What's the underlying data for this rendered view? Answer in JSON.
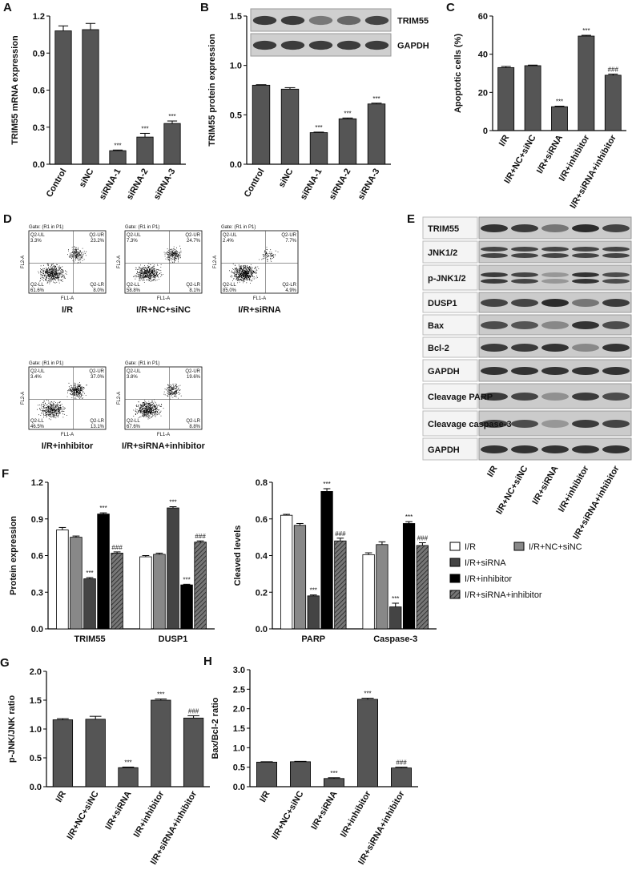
{
  "chart_data": [
    {
      "type": "bar",
      "panel": "A",
      "y_label": "TRIM55 mRNA expression",
      "categories": [
        "Control",
        "siNC",
        "siRNA-1",
        "siRNA-2",
        "siRNA-3"
      ],
      "values": [
        1.08,
        1.09,
        0.11,
        0.22,
        0.33
      ],
      "errors": [
        0.04,
        0.05,
        0.005,
        0.03,
        0.02
      ],
      "annotations": [
        null,
        null,
        "***",
        "***",
        "***"
      ],
      "color": "#555555",
      "ylim": [
        0,
        1.2
      ],
      "yticks": [
        {
          "value": 0,
          "label": "0.0"
        },
        0.3,
        0.6,
        0.9,
        1.2
      ]
    },
    {
      "type": "bar",
      "panel": "B",
      "y_label": "TRIM55 protein expression",
      "categories": [
        "Control",
        "siNC",
        "siRNA-1",
        "siRNA-2",
        "siRNA-3"
      ],
      "values": [
        0.8,
        0.76,
        0.32,
        0.46,
        0.61
      ],
      "errors": [
        0.005,
        0.015,
        0.005,
        0.008,
        0.008
      ],
      "annotations": [
        null,
        null,
        "***",
        "***",
        "***"
      ],
      "color": "#555555",
      "ylim": [
        0,
        1.5
      ],
      "yticks": [
        {
          "value": 0,
          "label": "0.0"
        },
        0.5,
        {
          "value": 1,
          "label": "1.0"
        },
        1.5
      ],
      "blot_labels": [
        "TRIM55",
        "GAPDH"
      ]
    },
    {
      "type": "bar",
      "panel": "C",
      "y_label": "Apoptotic cells (%)",
      "categories": [
        "I/R",
        "I/R+NC+siNC",
        "I/R+siRNA",
        "I/R+inhibitor",
        "I/R+siRNA+inhibitor"
      ],
      "values": [
        33,
        34,
        12.5,
        49.5,
        29
      ],
      "errors": [
        0.6,
        0.3,
        0.3,
        0.4,
        0.6
      ],
      "annotations": [
        null,
        null,
        "***",
        "***",
        "###"
      ],
      "color": "#555555",
      "ylim": [
        0,
        60
      ],
      "yticks": [
        0,
        20,
        40,
        60
      ]
    },
    {
      "type": "bar",
      "panel": "F",
      "y_label": "Protein expression",
      "categories": [
        "TRIM55",
        "DUSP1"
      ],
      "series": [
        {
          "name": "I/R",
          "color": "#ffffff",
          "values": [
            0.81,
            0.59
          ],
          "errors": [
            0.02,
            0.01
          ],
          "annotations": [
            null,
            null
          ]
        },
        {
          "name": "I/R+NC+siNC",
          "color": "#888888",
          "values": [
            0.75,
            0.61
          ],
          "errors": [
            0.01,
            0.01
          ],
          "annotations": [
            null,
            null
          ]
        },
        {
          "name": "I/R+siRNA",
          "color": "#444444",
          "values": [
            0.41,
            0.99
          ],
          "errors": [
            0.01,
            0.01
          ],
          "annotations": [
            "***",
            "***"
          ]
        },
        {
          "name": "I/R+inhibitor",
          "color": "#000000",
          "values": [
            0.94,
            0.36
          ],
          "errors": [
            0.01,
            0.005
          ],
          "annotations": [
            "***",
            "***"
          ]
        },
        {
          "name": "I/R+siRNA+inhibitor",
          "color": "#666666",
          "hatch": true,
          "values": [
            0.62,
            0.71
          ],
          "errors": [
            0.01,
            0.01
          ],
          "annotations": [
            "###",
            "###"
          ]
        }
      ],
      "ylim": [
        0,
        1.2
      ],
      "yticks": [
        {
          "value": 0,
          "label": "0.0"
        },
        0.3,
        0.6,
        0.9,
        1.2
      ]
    },
    {
      "type": "bar",
      "y_label": "Cleaved levels",
      "categories": [
        "PARP",
        "Caspase-3"
      ],
      "legend": "right",
      "series": [
        {
          "name": "I/R",
          "color": "#ffffff",
          "values": [
            0.62,
            0.405
          ],
          "errors": [
            0.005,
            0.01
          ],
          "annotations": [
            null,
            null
          ]
        },
        {
          "name": "I/R+NC+siNC",
          "color": "#888888",
          "values": [
            0.565,
            0.46
          ],
          "errors": [
            0.01,
            0.015
          ],
          "annotations": [
            null,
            null
          ]
        },
        {
          "name": "I/R+siRNA",
          "color": "#444444",
          "values": [
            0.18,
            0.12
          ],
          "errors": [
            0.005,
            0.02
          ],
          "annotations": [
            "***",
            "***"
          ]
        },
        {
          "name": "I/R+inhibitor",
          "color": "#000000",
          "values": [
            0.75,
            0.575
          ],
          "errors": [
            0.015,
            0.01
          ],
          "annotations": [
            "***",
            "***"
          ]
        },
        {
          "name": "I/R+siRNA+inhibitor",
          "color": "#666666",
          "hatch": true,
          "values": [
            0.48,
            0.455
          ],
          "errors": [
            0.015,
            0.015
          ],
          "annotations": [
            "###",
            "###"
          ]
        }
      ],
      "ylim": [
        0,
        0.8
      ],
      "yticks": [
        {
          "value": 0,
          "label": "0.0"
        },
        0.2,
        0.4,
        0.6,
        0.8
      ]
    },
    {
      "type": "bar",
      "panel": "G",
      "y_label": "p-JNK/JNK ratio",
      "categories": [
        "I/R",
        "I/R+NC+siNC",
        "I/R+siRNA",
        "I/R+inhibitor",
        "I/R+siRNA+inhibitor"
      ],
      "values": [
        1.16,
        1.17,
        0.33,
        1.5,
        1.19
      ],
      "errors": [
        0.02,
        0.05,
        0.01,
        0.02,
        0.04
      ],
      "annotations": [
        null,
        null,
        "***",
        "***",
        "###"
      ],
      "color": "#555555",
      "ylim": [
        0,
        2
      ],
      "yticks": [
        {
          "value": 0,
          "label": "0.0"
        },
        0.5,
        {
          "value": 1,
          "label": "1.0"
        },
        1.5,
        {
          "value": 2,
          "label": "2.0"
        }
      ]
    },
    {
      "type": "bar",
      "panel": "H",
      "y_label": "Bax/Bcl-2 ratio",
      "categories": [
        "I/R",
        "I/R+NC+siNC",
        "I/R+siRNA",
        "I/R+inhibitor",
        "I/R+siRNA+inhibitor"
      ],
      "values": [
        0.63,
        0.64,
        0.21,
        2.24,
        0.48
      ],
      "errors": [
        0.01,
        0.01,
        0.02,
        0.03,
        0.02
      ],
      "annotations": [
        null,
        null,
        "***",
        "***",
        "###"
      ],
      "color": "#555555",
      "ylim": [
        0,
        3
      ],
      "yticks": [
        {
          "value": 0,
          "label": "0.0"
        },
        0.5,
        {
          "value": 1,
          "label": "1.0"
        },
        1.5,
        {
          "value": 2,
          "label": "2.0"
        },
        2.5,
        {
          "value": 3,
          "label": "3.0"
        }
      ]
    }
  ],
  "flow": {
    "panel": "D",
    "x_label": "FL1-A",
    "y_label": "FL2-A",
    "gate": "Gate: (R1 in P1)",
    "quadrant_names": [
      "Q2-UL",
      "Q2-UR",
      "Q2-LL",
      "Q2-LR"
    ],
    "plots": [
      {
        "label": "I/R",
        "percents": [
          "3.3%",
          "23.2%",
          "61.6%",
          "8.0%"
        ]
      },
      {
        "label": "I/R+NC+siNC",
        "percents": [
          "7.3%",
          "24.7%",
          "58.8%",
          "8.1%"
        ]
      },
      {
        "label": "I/R+siRNA",
        "percents": [
          "2.4%",
          "7.7%",
          "85.0%",
          "4.9%"
        ]
      },
      {
        "label": "I/R+inhibitor",
        "percents": [
          "3.4%",
          "37.0%",
          "46.5%",
          "13.1%"
        ]
      },
      {
        "label": "I/R+siRNA+inhibitor",
        "percents": [
          "3.8%",
          "19.6%",
          "67.6%",
          "8.8%"
        ]
      }
    ]
  },
  "blot": {
    "panel": "E",
    "rows": [
      "TRIM55",
      "JNK1/2",
      "p-JNK1/2",
      "DUSP1",
      "Bax",
      "Bcl-2",
      "GAPDH",
      "Cleavage PARP",
      "Cleavage caspase-3",
      "GAPDH"
    ],
    "lanes": [
      "I/R",
      "I/R+NC+siNC",
      "I/R+siRNA",
      "I/R+inhibitor",
      "I/R+siRNA+inhibitor"
    ]
  }
}
